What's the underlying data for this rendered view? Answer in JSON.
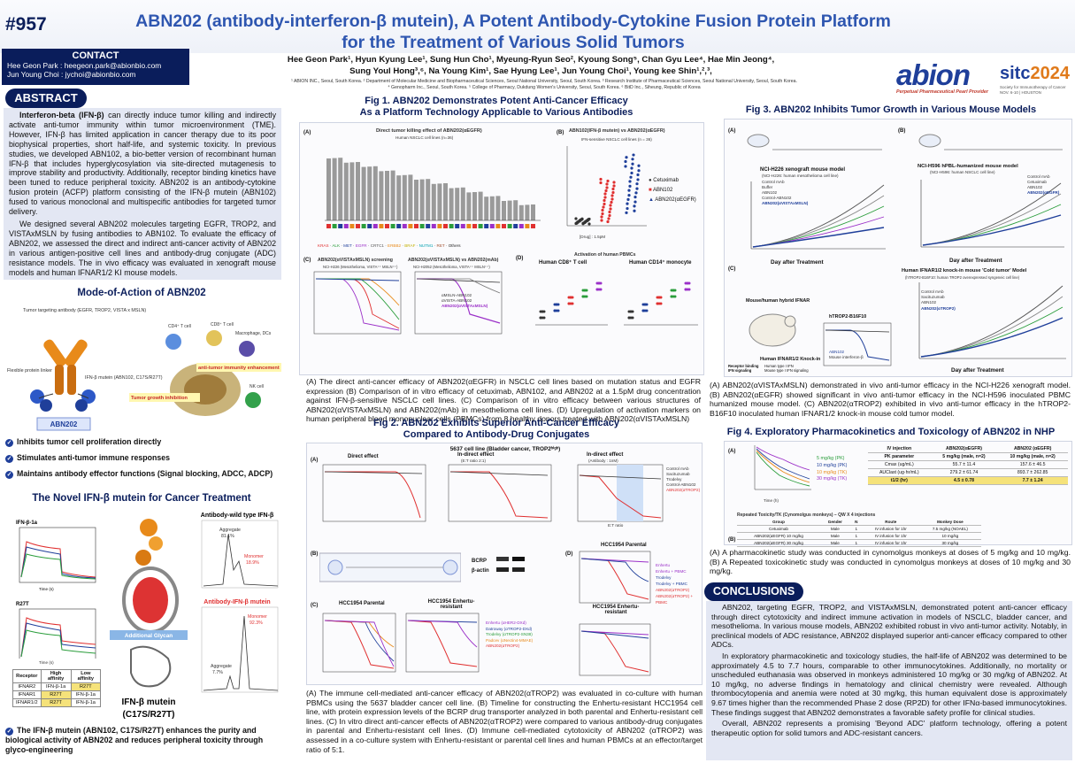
{
  "poster_number": "#957",
  "title": {
    "line1": "ABN202 (antibody-interferon-β mutein), A Potent Antibody-Cytokine Fusion Protein Platform",
    "line2": "for the Treatment of Various Solid Tumors"
  },
  "contact": {
    "header": "CONTACT",
    "line1": "Hee Geon Park : heegeon.park@abionbio.com",
    "line2": "Jun Young Choi : jychoi@abionbio.com"
  },
  "authors": {
    "line1": "Hee Geon Park¹, Hyun Kyung Lee¹, Sung Hun Cho¹, Myeung-Ryun Seo², Kyoung Song⁵, Chan Gyu Lee⁴, Hae Min Jeong⁴,",
    "line2": "Sung Youl Hong³,⁶, Na Young Kim¹, Sae Hyung Lee¹, Jun Young Choi¹, Young kee Shin¹,²,³,",
    "affil1": "¹ ABION INC., Seoul, South Korea. ² Department of Molecular Medicine and Biopharmaceutical Sciences, Seoul National University, Seoul, South Korea. ³ Research Institute of Pharmaceutical Sciences, Seoul National University, Seoul, South Korea.",
    "affil2": "⁴ Genopharm Inc., Seoul, South Korea. ⁵ College of Pharmacy, Dukdung Women's University, Seoul, South Korea. ⁶ BitD Inc., Siheung, Republic of Korea"
  },
  "logos": {
    "abion": "abion",
    "abion_sub": "Perpetual Pharmaceutical Pearl Provider",
    "sitc_a": "sitc",
    "sitc_b": "2024",
    "sitc_sub": "Society for Immunotherapy of Cancer NOV. 6-10 | HOUSTON"
  },
  "abstract": {
    "header": "ABSTRACT",
    "p1_bold": "Interferon-beta (IFN-β)",
    "p1": " can directly induce tumor killing and indirectly activate anti-tumor immunity within tumor microenvironment (TME). However, IFN-β has limited application in cancer therapy due to its poor biophysical properties, short half-life, and systemic toxicity. In previous studies, we developed ABN102, a bio-better version of recombinant human IFN-β that includes hyperglycosylation via site-directed mutagenesis to improve stability and productivity. Additionally, receptor binding kinetics have been tuned to reduce peripheral toxicity. ABN202 is an antibody-cytokine fusion protein (ACFP) platform consisting of the IFN-β mutein (ABN102) fused to various monoclonal and multispecific antibodies for targeted tumor delivery.",
    "p2": "We designed several ABN202 molecules targeting EGFR, TROP2, and VISTAxMSLN by fusing antibodies to ABN102. To evaluate the efficacy of ABN202, we assessed the direct and indirect anti-cancer activity of ABN202 in various antigen-positive cell lines and antibody-drug conjugate (ADC) resistance models. The in vivo efficacy was evaluated in xenograft mouse models and human IFNAR1/2 KI mouse models."
  },
  "moa": {
    "header": "Mode-of-Action of ABN202",
    "labels": {
      "tumor_ab": "Tumor targeting antibody (EGFR, TROP2, VISTA x MSLN)",
      "linker": "Flexible protein linker",
      "mutein": "IFN-β mutein (ABN102, C17S/R27T)",
      "abn202": "ABN202",
      "cd4": "CD4⁺ T cell",
      "cd8": "CD8⁺ T cell",
      "mac": "Macrophage, DCs",
      "nk": "NK cell",
      "enh": "anti-tumor immunity enhancement",
      "inh": "Tumor growth inhibition"
    },
    "bullets": [
      "Inhibits tumor cell proliferation directly",
      "Stimulates anti-tumor immune responses",
      "Maintains antibody effector functions (Signal blocking, ADCC, ADCP)"
    ]
  },
  "novel": {
    "header": "The Novel IFN-β mutein for Cancer Treatment",
    "panel1": "IFN-β-1a",
    "panel2": "R27T",
    "xlabel": "Time (s)",
    "ylabel": "Normalized response (RU)",
    "wt_title": "Antibody-wild type IFN-β",
    "wt_agg": "Aggregate",
    "wt_agg_val": "81.1%",
    "wt_mono": "Monomer",
    "wt_mono_val": "18.9%",
    "mut_title": "Antibody-IFN-β mutein",
    "mut_mono": "Monomer",
    "mut_mono_val": "92.3%",
    "mut_agg": "Aggregate",
    "mut_agg_val": "7.7%",
    "glycan": "Additional Glycan",
    "mutein_label": "IFN-β mutein",
    "mutein_sub": "(C17S/R27T)",
    "table_headers": [
      "Receptor",
      "High affinity",
      "Low affinity"
    ],
    "table_rows": [
      [
        "IFNAR2",
        "IFN-β-1a",
        "R27T"
      ],
      [
        "IFNAR1",
        "R27T",
        "IFN-β-1a"
      ],
      [
        "IFNAR1/2",
        "R27T",
        "IFN-β-1a"
      ]
    ],
    "bottom_note": "The IFN-β mutein (ABN102, C17S/R27T) enhances the purity and biological activity of ABN202 and reduces peripheral toxicity through glyco-engineering"
  },
  "fig1": {
    "title1": "Fig 1. ABN202 Demonstrates Potent Anti-Cancer Efficacy",
    "title2": "As a Platform Technology Applicable to Various Antibodies",
    "panelA_title": "Direct tumor killing effect of ABN202(αEGFR)",
    "panelA_sub": "Human NSCLC cell lines (n=36)",
    "panelA_ylabel": "Cytotoxicity (%)",
    "panelA_legend": [
      "KRAS",
      "ALK",
      "MET",
      "EGFR",
      "CRTC1",
      "ERBB2",
      "BRAF",
      "NUTM1",
      "RET",
      "Others"
    ],
    "panelB_title": "ABN102(IFN-β mutein) vs ABN202(αEGFR)",
    "panelB_sub": "IFN-sensitive NSCLC cell lines (n = 36)",
    "panelB_ylabel": "Cytotoxicity(%)",
    "panelB_xlabel": "[Drug] : 1.5pM",
    "panelB_legend": [
      "Cetuximab",
      "ABN102",
      "ABN202(αEGFR)"
    ],
    "panelC1_title": "ABN202(αVISTAxMSLN) screening",
    "panelC1_sub": "NCI-H226 (Mesothelioma, VISTA⁺⁺ MSLN⁺⁺)",
    "panelC2_title": "ABN202(αVISTAxMSLN) vs ABN202(mAb)",
    "panelC2_sub": "NCI-H2052 (Mesothelioma, VISTA⁺⁺ MSLN⁺⁺)",
    "panelC2_legend": [
      "αMSLN-ABN102",
      "αVISTA-ABN102",
      "ABN202(αVISTAxMSLN)"
    ],
    "panelC_ylabel": "Cell viability (%)",
    "panelD_title": "Activation of human PBMCs",
    "panelD1": "Human CD8⁺ T cell",
    "panelD2": "Human CD14⁺ monocyte",
    "caption": "(A) The direct anti-cancer efficacy of ABN202(αEGFR) in NSCLC cell lines based on mutation status and EGFR expression (B) Comparison of in vitro efficacy of cetuximab, ABN102, and ABN202 at a 1.5pM drug concentration against IFN-β-sensitive NSCLC cell lines. (C) Comparison of in vitro efficacy between various structures of ABN202(αVISTAxMSLN) and ABN202(mAb) in mesothelioma cell lines. (D) Upregulation of activation markers on human peripheral blood mononuclear cells (PBMCs) from 8 healthy donors treated with ABN202(αVISTAxMSLN)"
  },
  "fig2": {
    "title1": "Fig 2. ABN202 Exhibits Superior Anti-Cancer Efficacy",
    "title2": "Compared to Antibody-Drug Conjugates",
    "subtitle": "5637 cell line (Bladder cancer, TROP2ʰⁱᵍʰ)",
    "a1": "Direct effect",
    "a2": "In-direct effect",
    "a2_sub": "(E:T ratio 2:1)",
    "a3": "In-direct effect",
    "a3_sub": "(Antibody : 1nM)",
    "a3_x": "E:T ratio",
    "legend_a": [
      "Control mAb",
      "Sacituzumab",
      "Trodelvy",
      "Control-ABN102",
      "ABN202(αTROP2)"
    ],
    "b_label": "BCRP",
    "b_label2": "β-actin",
    "c1": "HCC1954 Parental",
    "c2": "HCC1954 Enhertu-resistant",
    "legend_c": [
      "Enhertu (αHER2-DXd)",
      "Datroway (αTROP2-DXd)",
      "Trodelvy (αTROP2-SN38)",
      "Padcev (αNectin4-MMAE)",
      "ABN202(αTROP2)"
    ],
    "d1": "HCC1954 Parental",
    "d2": "HCC1954 Enhertu-resistant",
    "legend_d": [
      "Enhertu",
      "Enhertu + PBMC",
      "Trodelvy",
      "Trodelvy + PBMC",
      "ABN202(αTROP2)",
      "ABN202(αTROP2) + PBMC"
    ],
    "ylabel": "Cell viability (%)",
    "caption": "(A) The immune cell-mediated anti-cancer efficacy of ABN202(αTROP2) was evaluated in co-culture with human PBMCs using the 5637 bladder cancer cell line. (B) Timeline for constructing the Enhertu-resistant HCC1954 cell line, with protein expression levels of the BCRP drug transporter analyzed in both parental and Enhertu-resistant cell lines. (C) In vitro direct anti-cancer effects of ABN202(αTROP2) were compared to various antibody-drug conjugates in parental and Enhertu-resistant cell lines. (D) Immune cell-mediated cytotoxicity of ABN202 (αTROP2) was assessed in a co-culture system with Enhertu-resistant or parental cell lines and human PBMCs at an effector/target ratio of 5:1."
  },
  "fig3": {
    "title": "Fig 3. ABN202 Inhibits Tumor Growth in Various Mouse Models",
    "a_title": "NCI-H226 xenograft mouse model",
    "a_sub": "(NCI-H226: human mesothelioma cell line)",
    "a_legend": [
      "Control mAb",
      "Buffer",
      "ABN102",
      "Control-ABN102",
      "ABN202(αVISTAxMSLN)"
    ],
    "b_title": "NCI-H596 hPBL-humanized mouse model",
    "b_sub": "(NCI-H596: human NSCLC cell line)",
    "b_legend": [
      "Control mAb",
      "Cetuximab",
      "ABN102",
      "ABN202(αEGFR)"
    ],
    "c_title": "Human IFNAR1/2 knock-in mouse 'Cold tumor' Model",
    "c_sub": "(hTROP2-B16F10: human TROP2 overexpressed syngeneic cell line)",
    "c_legend": [
      "Control mAb",
      "Sacituzumab",
      "ABN102",
      "ABN202(αTROP2)"
    ],
    "c_mid_title": "hTROP2-B16F10",
    "c_mid_legend": [
      "ABN102",
      "Mouse interferon-β"
    ],
    "xlabel": "Day after Treatment",
    "ylabel": "Tumor volume(mm³)",
    "ki_rows": [
      [
        "Receptor binding",
        "Human type I IFN"
      ],
      [
        "IFN signaling",
        "Mouse type I IFN signaling"
      ],
      [
        "Characteristic",
        "Bind to human IFN and transmit mouse IFN signaling"
      ]
    ],
    "ki_header": "Human IFNAR1/2 Knock-in",
    "ki_mouse": "Mouse/human hybrid IFNAR",
    "caption": "(A) ABN202(αVISTAxMSLN) demonstrated in vivo anti-tumor efficacy in the NCI-H226 xenograft model. (B) ABN202(αEGFR) showed significant in vivo anti-tumor efficacy in the NCI-H596 inoculated PBMC humanized mouse model. (C) ABN202(αTROP2) exhibited in vivo anti-tumor efficacy in the hTROP2-B16F10 inoculated human IFNAR1/2 knock-in mouse cold tumor model."
  },
  "fig4": {
    "title": "Fig 4. Exploratory Pharmacokinetics and Toxicology of ABN202 in NHP",
    "pk_legend": [
      "5 mg/kg (PK)",
      "10 mg/kg (PK)",
      "10 mg/kg (TK)",
      "30 mg/kg (TK)"
    ],
    "pk_xlabel": "Time (h)",
    "pk_ylabel": "Concentration (μg/mL)",
    "pk_table": {
      "headers": [
        "IV injection",
        "ABN202(αEGFR)",
        "ABN202 (αEGFR)"
      ],
      "sub": [
        "PK parameter",
        "5 mg/kg (male, n=2)",
        "10 mg/kg (male, n=2)"
      ],
      "rows": [
        [
          "Cmax (ug/mL)",
          "55.7 ± 11.4",
          "157.6 ± 46.5"
        ],
        [
          "AUClast (ug·hr/mL)",
          "279.2 ± 61.74",
          "893.7 ± 262.85"
        ],
        [
          "t1/2 (hr)",
          "4.5 ± 0.78",
          "7.7 ± 1.24"
        ]
      ]
    },
    "tox_title": "Repeated Toxicity/TK (Cynomolgus monkeys) – QW X 4 injections",
    "tox_headers": [
      "Group",
      "Gender",
      "N",
      "Route",
      "Monkey Dose"
    ],
    "tox_rows": [
      [
        "Cetuximab",
        "Male",
        "1",
        "IV infusion for 1hr",
        "7.5 mg/kg (NOAEL)"
      ],
      [
        "ABN202(αEGFR) 10 mg/kg",
        "Male",
        "1",
        "IV infusion for 1hr",
        "10 mg/kg"
      ],
      [
        "ABN202(αEGFR) 30 mg/kg",
        "Male",
        "1",
        "IV infusion for 1hr",
        "30 mg/kg"
      ]
    ],
    "caption": "(A) A pharmacokinetic study was conducted in cynomolgus monkeys at doses of 5 mg/kg and 10 mg/kg. (B) A Repeated toxicokinetic study was conducted in cynomolgus monkeys at doses of 10 mg/kg and 30 mg/kg."
  },
  "conclusions": {
    "header": "CONCLUSIONS",
    "p1": "ABN202, targeting EGFR, TROP2, and VISTAxMSLN, demonstrated potent anti-cancer efficacy through direct cytotoxicity and indirect immune activation in models of NSCLC, bladder cancer, and mesothelioma. In various mouse models, ABN202 exhibited robust in vivo anti-tumor activity. Notably, in preclinical models of ADC resistance, ABN202 displayed superior anti-cancer efficacy compared to other ADCs.",
    "p2": "In exploratory pharmacokinetic and toxicology studies, the half-life of ABN202 was determined to be approximately 4.5 to 7.7 hours, comparable to other immunocytokines. Additionally, no mortality or unscheduled euthanasia was observed in monkeys administered 10 mg/kg or 30 mg/kg of ABN202. At 10 mg/kg, no adverse findings in hematology and clinical chemistry were revealed. Although thrombocytopenia and anemia were noted at 30 mg/kg, this human equivalent dose is approximately 9.67 times higher than the recommended Phase 2 dose (RP2D) for other IFNα-based immunocytokines. These findings suggest that ABN202 demonstrates a favorable safety profile for clinical studies.",
    "p3": "Overall, ABN202 represents a promising 'Beyond ADC' platform technology, offering a potent therapeutic option for solid tumors and ADC-resistant cancers."
  },
  "colors": {
    "navy": "#0a1d5b",
    "title_blue": "#2e56b0",
    "pane": "#e3e7f3",
    "red": "#e0312b",
    "purple": "#9b30c8"
  }
}
